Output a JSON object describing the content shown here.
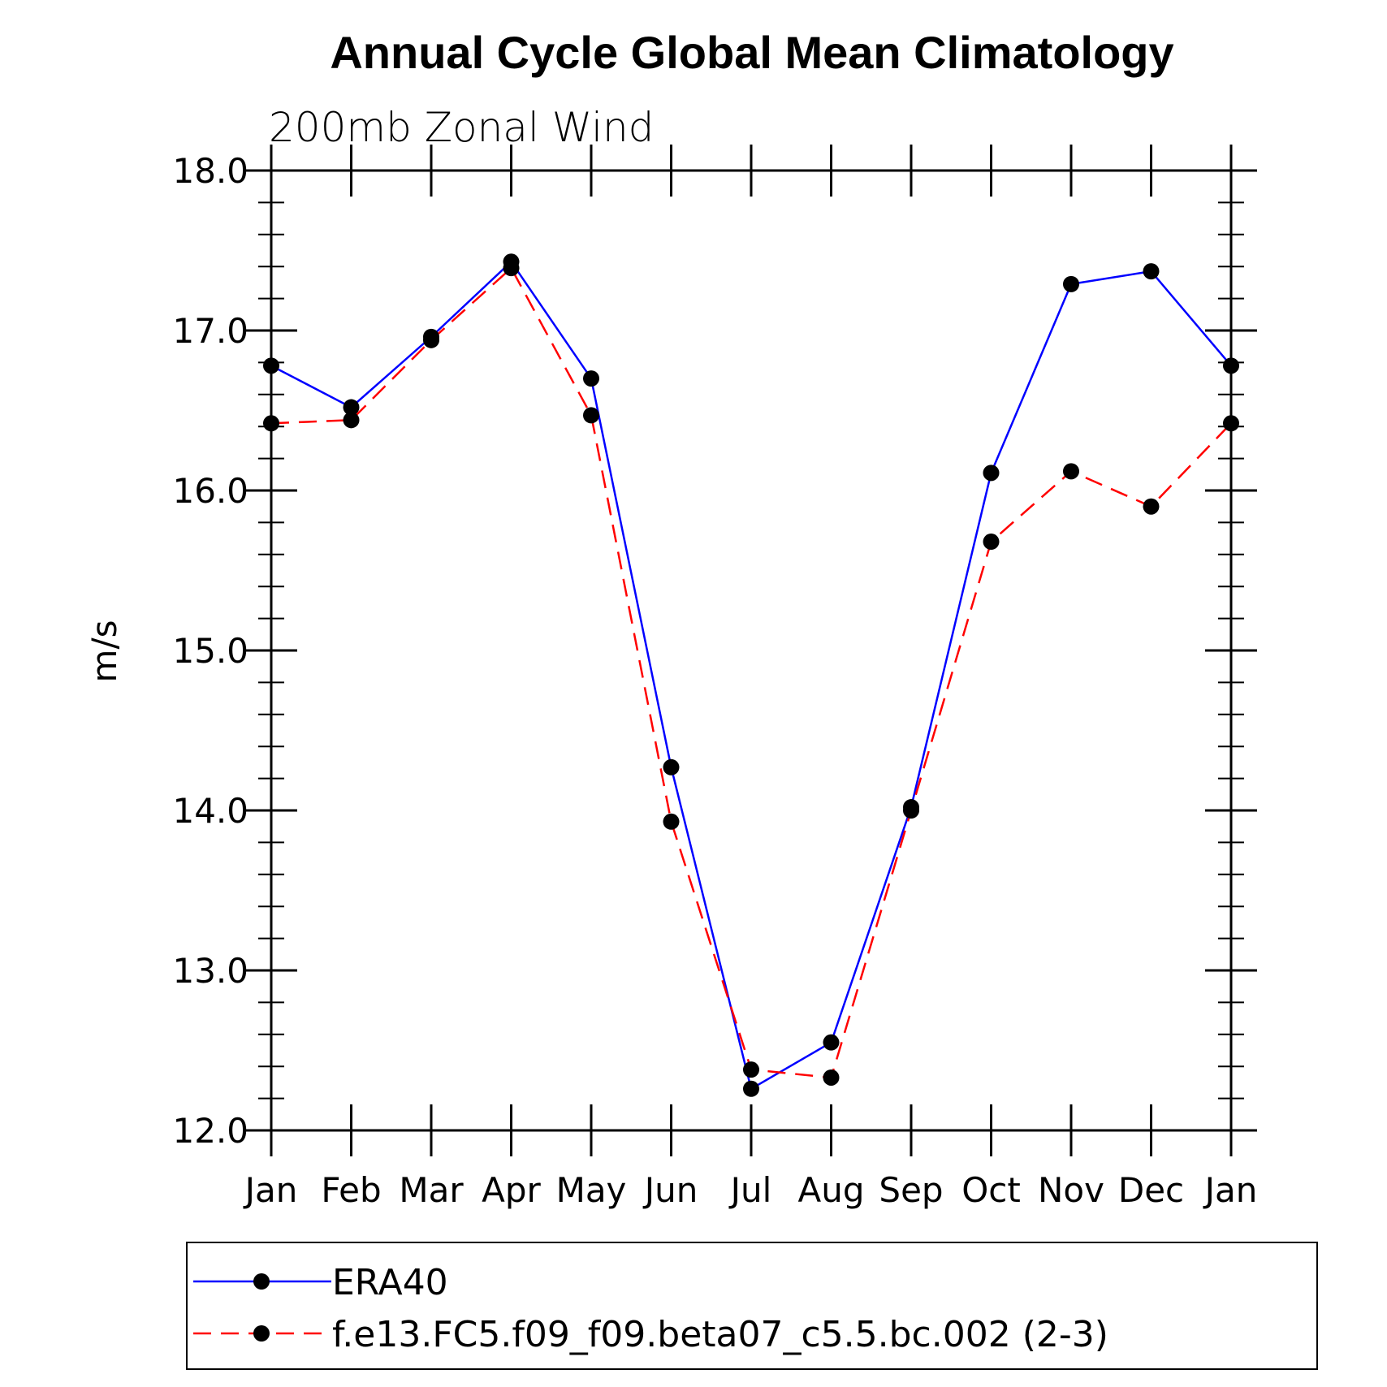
{
  "chart_data": {
    "type": "line",
    "title": "Annual Cycle Global Mean Climatology",
    "subtitle": "200mb Zonal Wind",
    "xlabel": "",
    "ylabel": "m/s",
    "categories": [
      "Jan",
      "Feb",
      "Mar",
      "Apr",
      "May",
      "Jun",
      "Jul",
      "Aug",
      "Sep",
      "Oct",
      "Nov",
      "Dec",
      "Jan"
    ],
    "ylim": [
      12.0,
      18.0
    ],
    "yticks": [
      12.0,
      13.0,
      14.0,
      15.0,
      16.0,
      17.0,
      18.0
    ],
    "ytick_labels": [
      "12.0",
      "13.0",
      "14.0",
      "15.0",
      "16.0",
      "17.0",
      "18.0"
    ],
    "grid": false,
    "legend_position": "bottom",
    "series": [
      {
        "name": "ERA40",
        "color": "#0000ff",
        "line_style": "solid",
        "marker": "filled-circle",
        "values": [
          16.78,
          16.52,
          16.96,
          17.43,
          16.7,
          14.27,
          12.26,
          12.55,
          14.02,
          16.11,
          17.29,
          17.37,
          16.78
        ]
      },
      {
        "name": "f.e13.FC5.f09_f09.beta07_c5.5.bc.002 (2-3)",
        "color": "#ff0000",
        "line_style": "dashed",
        "marker": "filled-circle",
        "values": [
          16.42,
          16.44,
          16.94,
          17.39,
          16.47,
          13.93,
          12.38,
          12.33,
          14.0,
          15.68,
          16.12,
          15.9,
          16.42
        ]
      }
    ]
  }
}
